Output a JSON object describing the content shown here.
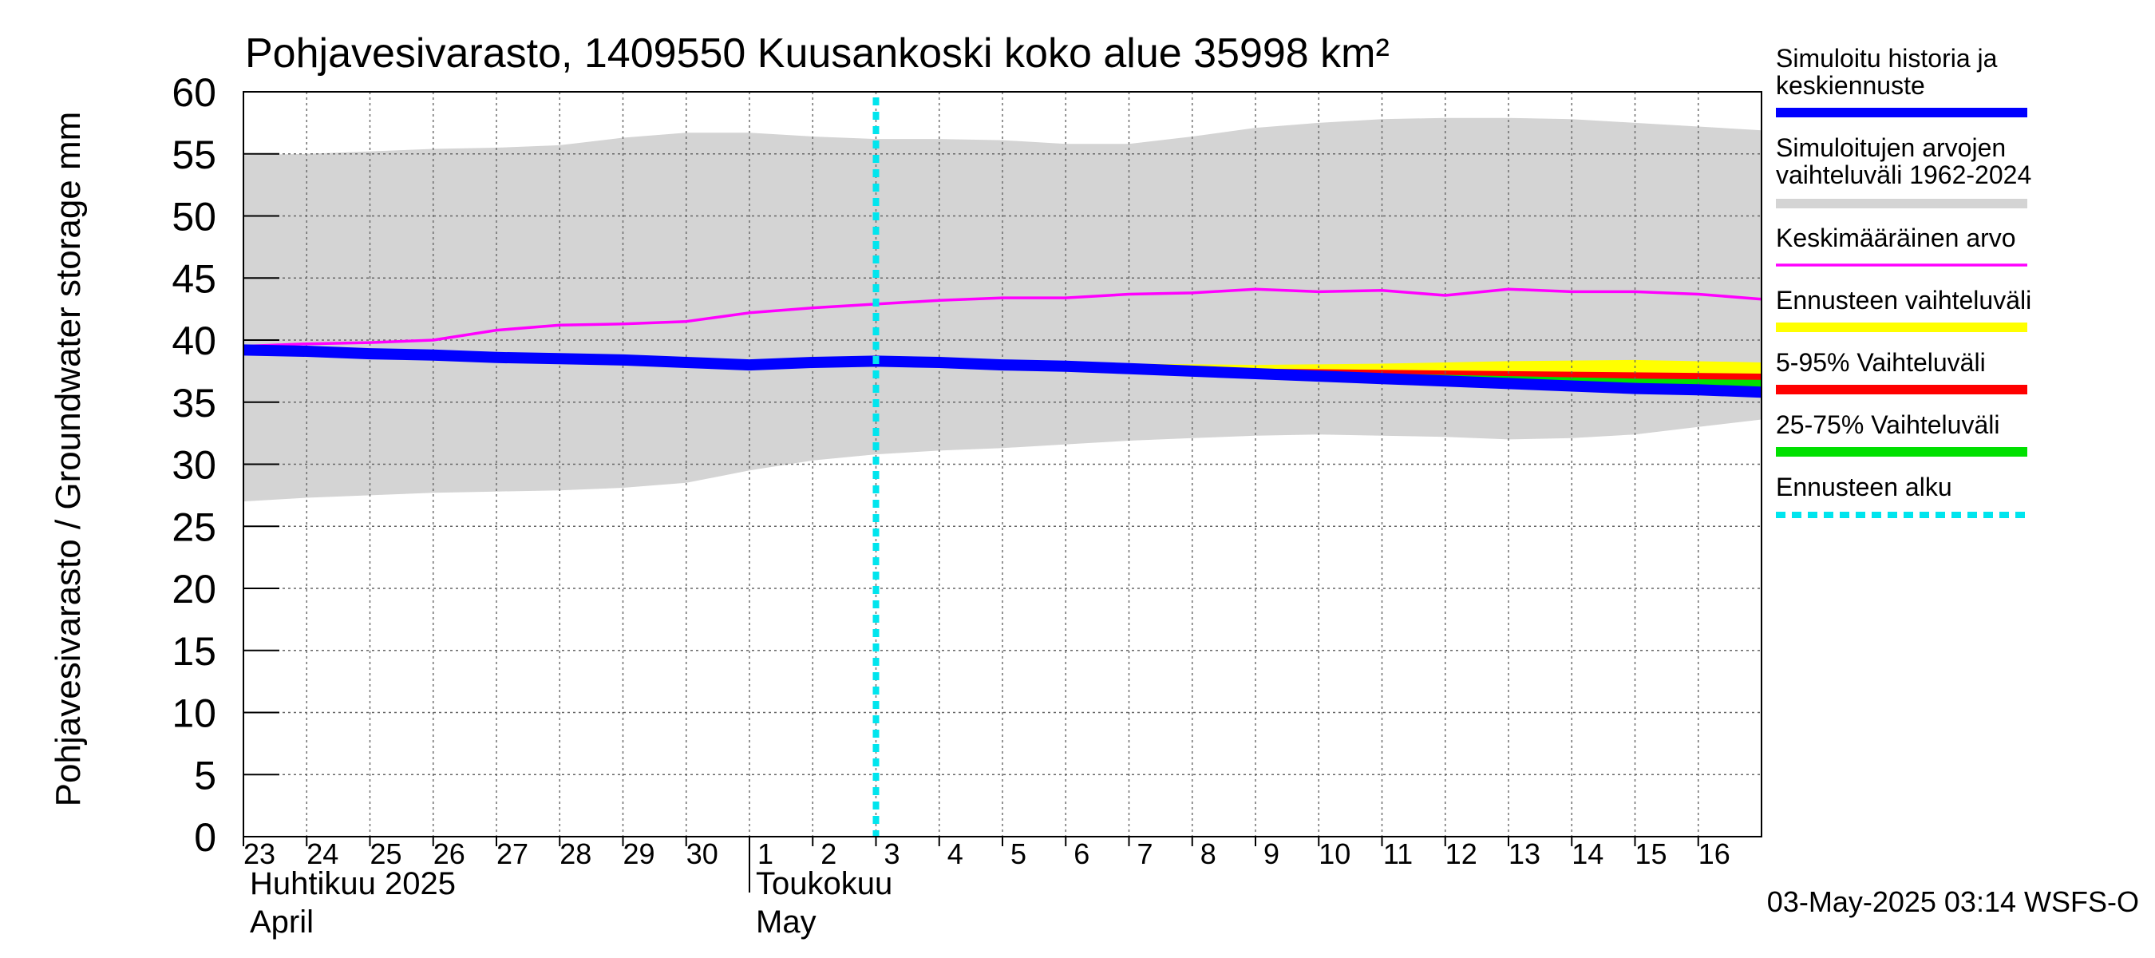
{
  "chart_data": {
    "type": "area",
    "title": "Pohjavesivarasto, 1409550 Kuusankoski koko alue 35998 km²",
    "ylabel": "Pohjavesivarasto / Groundwater storage   mm",
    "ylim": [
      0,
      60
    ],
    "yticks": [
      0,
      5,
      10,
      15,
      20,
      25,
      30,
      35,
      40,
      45,
      50,
      55,
      60
    ],
    "x_range": [
      "2025-04-23",
      "2025-05-17"
    ],
    "x_ticks": [
      {
        "date": "2025-04-23",
        "label": "23"
      },
      {
        "date": "2025-04-24",
        "label": "24"
      },
      {
        "date": "2025-04-25",
        "label": "25"
      },
      {
        "date": "2025-04-26",
        "label": "26"
      },
      {
        "date": "2025-04-27",
        "label": "27"
      },
      {
        "date": "2025-04-28",
        "label": "28"
      },
      {
        "date": "2025-04-29",
        "label": "29"
      },
      {
        "date": "2025-04-30",
        "label": "30"
      },
      {
        "date": "2025-05-01",
        "label": "1"
      },
      {
        "date": "2025-05-02",
        "label": "2"
      },
      {
        "date": "2025-05-03",
        "label": "3"
      },
      {
        "date": "2025-05-04",
        "label": "4"
      },
      {
        "date": "2025-05-05",
        "label": "5"
      },
      {
        "date": "2025-05-06",
        "label": "6"
      },
      {
        "date": "2025-05-07",
        "label": "7"
      },
      {
        "date": "2025-05-08",
        "label": "8"
      },
      {
        "date": "2025-05-09",
        "label": "9"
      },
      {
        "date": "2025-05-10",
        "label": "10"
      },
      {
        "date": "2025-05-11",
        "label": "11"
      },
      {
        "date": "2025-05-12",
        "label": "12"
      },
      {
        "date": "2025-05-13",
        "label": "13"
      },
      {
        "date": "2025-05-14",
        "label": "14"
      },
      {
        "date": "2025-05-15",
        "label": "15"
      },
      {
        "date": "2025-05-16",
        "label": "16"
      }
    ],
    "month_labels": [
      {
        "date": "2025-04-23",
        "fi": "Huhtikuu  2025",
        "en": "April"
      },
      {
        "date": "2025-05-01",
        "fi": "Toukokuu",
        "en": "May"
      }
    ],
    "month_separator": "2025-05-01",
    "grid": true,
    "legend_position": "right",
    "forecast_start": "2025-05-03",
    "timestamp": "03-May-2025 03:14 WSFS-O",
    "series": [
      {
        "name": "Simuloitujen arvojen vaihteluväli 1962-2024",
        "kind": "band",
        "color": "#d4d4d4",
        "x": [
          "2025-04-23",
          "2025-04-24",
          "2025-04-25",
          "2025-04-26",
          "2025-04-27",
          "2025-04-28",
          "2025-04-29",
          "2025-04-30",
          "2025-05-01",
          "2025-05-02",
          "2025-05-03",
          "2025-05-04",
          "2025-05-05",
          "2025-05-06",
          "2025-05-07",
          "2025-05-08",
          "2025-05-09",
          "2025-05-10",
          "2025-05-11",
          "2025-05-12",
          "2025-05-13",
          "2025-05-14",
          "2025-05-15",
          "2025-05-16",
          "2025-05-17"
        ],
        "low": [
          27.0,
          27.3,
          27.5,
          27.7,
          27.8,
          27.9,
          28.1,
          28.5,
          29.5,
          30.3,
          30.8,
          31.1,
          31.3,
          31.6,
          31.9,
          32.1,
          32.3,
          32.4,
          32.3,
          32.2,
          32.0,
          32.1,
          32.4,
          33.0,
          33.6
        ],
        "high": [
          54.9,
          55.0,
          55.2,
          55.4,
          55.5,
          55.7,
          56.3,
          56.7,
          56.7,
          56.4,
          56.2,
          56.2,
          56.1,
          55.8,
          55.8,
          56.4,
          57.1,
          57.5,
          57.8,
          57.9,
          57.9,
          57.8,
          57.5,
          57.2,
          56.9
        ]
      },
      {
        "name": "Ennusteen vaihteluväli",
        "kind": "band",
        "color": "#ffff00",
        "x": [
          "2025-05-03",
          "2025-05-05",
          "2025-05-07",
          "2025-05-09",
          "2025-05-11",
          "2025-05-13",
          "2025-05-15",
          "2025-05-17"
        ],
        "low": [
          38.4,
          38.1,
          37.6,
          37.0,
          36.6,
          36.2,
          35.9,
          35.7
        ],
        "high": [
          38.5,
          38.3,
          38.1,
          38.0,
          38.1,
          38.3,
          38.4,
          38.2
        ]
      },
      {
        "name": "5-95% Vaihteluväli",
        "kind": "band",
        "color": "#ff0000",
        "x": [
          "2025-05-03",
          "2025-05-05",
          "2025-05-07",
          "2025-05-09",
          "2025-05-11",
          "2025-05-13",
          "2025-05-15",
          "2025-05-17"
        ],
        "low": [
          38.4,
          38.1,
          37.6,
          37.0,
          36.6,
          36.3,
          36.0,
          35.8
        ],
        "high": [
          38.5,
          38.2,
          37.9,
          37.7,
          37.6,
          37.5,
          37.4,
          37.3
        ]
      },
      {
        "name": "25-75% Vaihteluväli",
        "kind": "band",
        "color": "#00e000",
        "x": [
          "2025-05-03",
          "2025-05-05",
          "2025-05-07",
          "2025-05-09",
          "2025-05-11",
          "2025-05-13",
          "2025-05-15",
          "2025-05-17"
        ],
        "low": [
          38.4,
          38.1,
          37.7,
          37.2,
          36.9,
          36.6,
          36.3,
          36.1
        ],
        "high": [
          38.5,
          38.2,
          37.8,
          37.5,
          37.3,
          37.1,
          36.9,
          36.8
        ]
      },
      {
        "name": "Keskimääräinen arvo",
        "kind": "line",
        "color": "#ff00ff",
        "x": [
          "2025-04-23",
          "2025-04-24",
          "2025-04-25",
          "2025-04-26",
          "2025-04-27",
          "2025-04-28",
          "2025-04-29",
          "2025-04-30",
          "2025-05-01",
          "2025-05-02",
          "2025-05-03",
          "2025-05-04",
          "2025-05-05",
          "2025-05-06",
          "2025-05-07",
          "2025-05-08",
          "2025-05-09",
          "2025-05-10",
          "2025-05-11",
          "2025-05-12",
          "2025-05-13",
          "2025-05-14",
          "2025-05-15",
          "2025-05-16",
          "2025-05-17"
        ],
        "values": [
          39.5,
          39.7,
          39.8,
          40.0,
          40.8,
          41.2,
          41.3,
          41.5,
          42.2,
          42.6,
          42.9,
          43.2,
          43.4,
          43.4,
          43.7,
          43.8,
          44.1,
          43.9,
          44.0,
          43.6,
          44.1,
          43.9,
          43.9,
          43.7,
          43.3
        ]
      },
      {
        "name": "Simuloitu historia ja keskiennuste",
        "kind": "line",
        "color": "#0000ff",
        "x": [
          "2025-04-23",
          "2025-04-24",
          "2025-04-25",
          "2025-04-26",
          "2025-04-27",
          "2025-04-28",
          "2025-04-29",
          "2025-04-30",
          "2025-05-01",
          "2025-05-02",
          "2025-05-03",
          "2025-05-04",
          "2025-05-05",
          "2025-05-06",
          "2025-05-07",
          "2025-05-08",
          "2025-05-09",
          "2025-05-10",
          "2025-05-11",
          "2025-05-12",
          "2025-05-13",
          "2025-05-14",
          "2025-05-15",
          "2025-05-16",
          "2025-05-17"
        ],
        "values": [
          39.2,
          39.1,
          38.9,
          38.8,
          38.6,
          38.5,
          38.4,
          38.2,
          38.0,
          38.2,
          38.3,
          38.2,
          38.0,
          37.9,
          37.7,
          37.5,
          37.3,
          37.1,
          36.9,
          36.7,
          36.5,
          36.3,
          36.1,
          36.0,
          35.8
        ]
      },
      {
        "name": "Ennusteen alku",
        "kind": "vline",
        "color": "#00e5ee",
        "x": "2025-05-03"
      }
    ],
    "legend": [
      {
        "label": "Simuloitu historia ja keskiennuste",
        "color": "#0000ff",
        "style": "thick"
      },
      {
        "label": "Simuloitujen arvojen vaihteluväli 1962-2024",
        "color": "#d4d4d4",
        "style": "thick"
      },
      {
        "label": "Keskimääräinen arvo",
        "color": "#ff00ff",
        "style": "thin"
      },
      {
        "label": "Ennusteen vaihteluväli",
        "color": "#ffff00",
        "style": "thick"
      },
      {
        "label": "5-95% Vaihteluväli",
        "color": "#ff0000",
        "style": "thick"
      },
      {
        "label": "25-75% Vaihteluväli",
        "color": "#00e000",
        "style": "thick"
      },
      {
        "label": "Ennusteen alku",
        "color": "#00e5ee",
        "style": "dashed"
      }
    ]
  }
}
